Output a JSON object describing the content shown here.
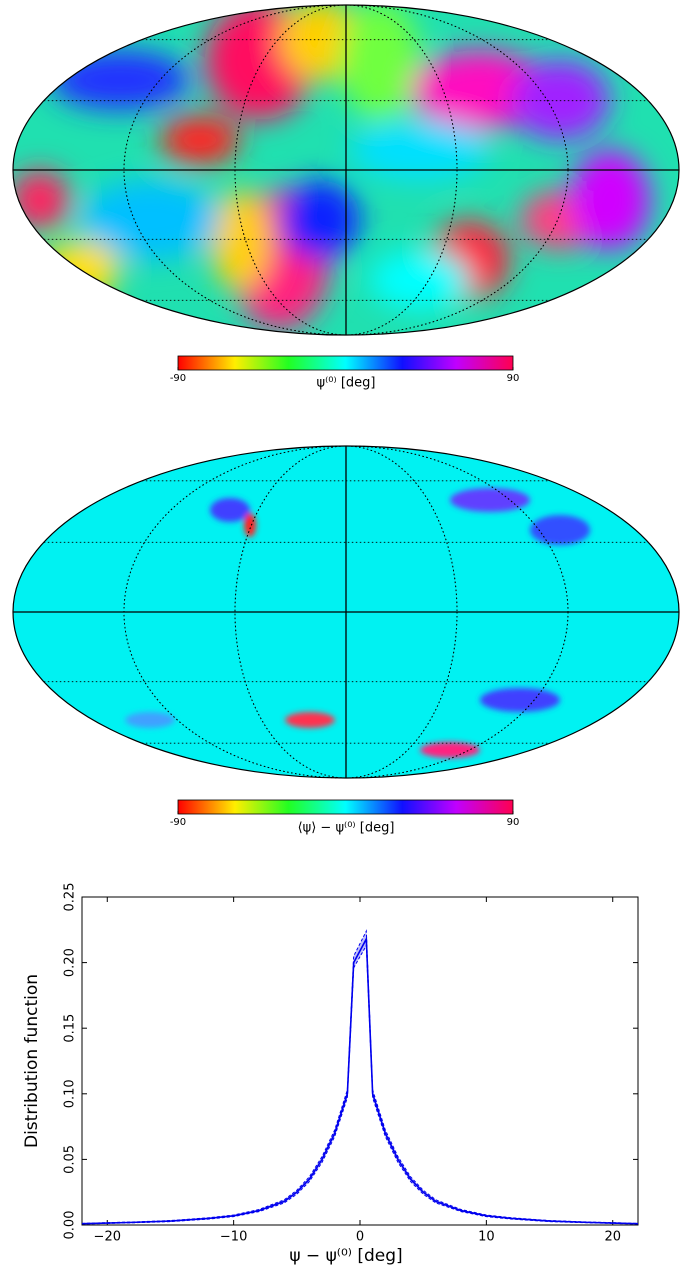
{
  "chart_data": [
    {
      "type": "map",
      "colorbar_label": "ψ⁽⁰⁾ [deg]",
      "clim": [
        -90,
        90
      ],
      "cticks": [
        -90,
        90
      ]
    },
    {
      "type": "map",
      "colorbar_label": "⟨ψ⟩ − ψ⁽⁰⁾ [deg]",
      "clim": [
        -90,
        90
      ],
      "cticks": [
        -90,
        90
      ]
    },
    {
      "type": "line",
      "x_label": "ψ − ψ⁽⁰⁾ [deg]",
      "y_label": "Distribution function",
      "xlim": [
        -22,
        22
      ],
      "ylim": [
        0,
        0.25
      ],
      "xticks": [
        {
          "value": -20,
          "label": "−20"
        },
        {
          "value": -10,
          "label": "−10"
        },
        0,
        10,
        20
      ],
      "yticks": [
        {
          "value": 0,
          "label": "0.00"
        },
        0.05,
        {
          "value": 0.1,
          "label": "0.10"
        },
        0.15,
        {
          "value": 0.2,
          "label": "0.20"
        },
        0.25
      ],
      "x": [
        -22,
        -20,
        -18,
        -15,
        -12,
        -10,
        -8,
        -6,
        -5,
        -4,
        -3,
        -2,
        -1,
        -0.5,
        0.5,
        1,
        2,
        3,
        4,
        5,
        6,
        8,
        10,
        12,
        15,
        18,
        20,
        22
      ],
      "series": [
        {
          "color": "#0000ee",
          "values": [
            0.001,
            0.0015,
            0.002,
            0.003,
            0.005,
            0.007,
            0.011,
            0.018,
            0.025,
            0.035,
            0.05,
            0.07,
            0.1,
            0.2,
            0.218,
            0.1,
            0.07,
            0.05,
            0.035,
            0.025,
            0.018,
            0.011,
            0.007,
            0.005,
            0.003,
            0.002,
            0.0015,
            0.001
          ],
          "lower": [
            0.0008,
            0.0012,
            0.0017,
            0.0026,
            0.0045,
            0.0064,
            0.0102,
            0.0168,
            0.0235,
            0.0332,
            0.0478,
            0.0675,
            0.097,
            0.196,
            0.213,
            0.097,
            0.0675,
            0.0478,
            0.0332,
            0.0235,
            0.0168,
            0.0102,
            0.0064,
            0.0045,
            0.0026,
            0.0017,
            0.0012,
            0.0008
          ],
          "upper": [
            0.0012,
            0.0018,
            0.0023,
            0.0034,
            0.0055,
            0.0076,
            0.0118,
            0.0192,
            0.0265,
            0.0368,
            0.0522,
            0.0725,
            0.103,
            0.205,
            0.224,
            0.103,
            0.0725,
            0.0522,
            0.0368,
            0.0265,
            0.0192,
            0.0118,
            0.0076,
            0.0055,
            0.0034,
            0.0023,
            0.0018,
            0.0012
          ]
        }
      ]
    }
  ]
}
